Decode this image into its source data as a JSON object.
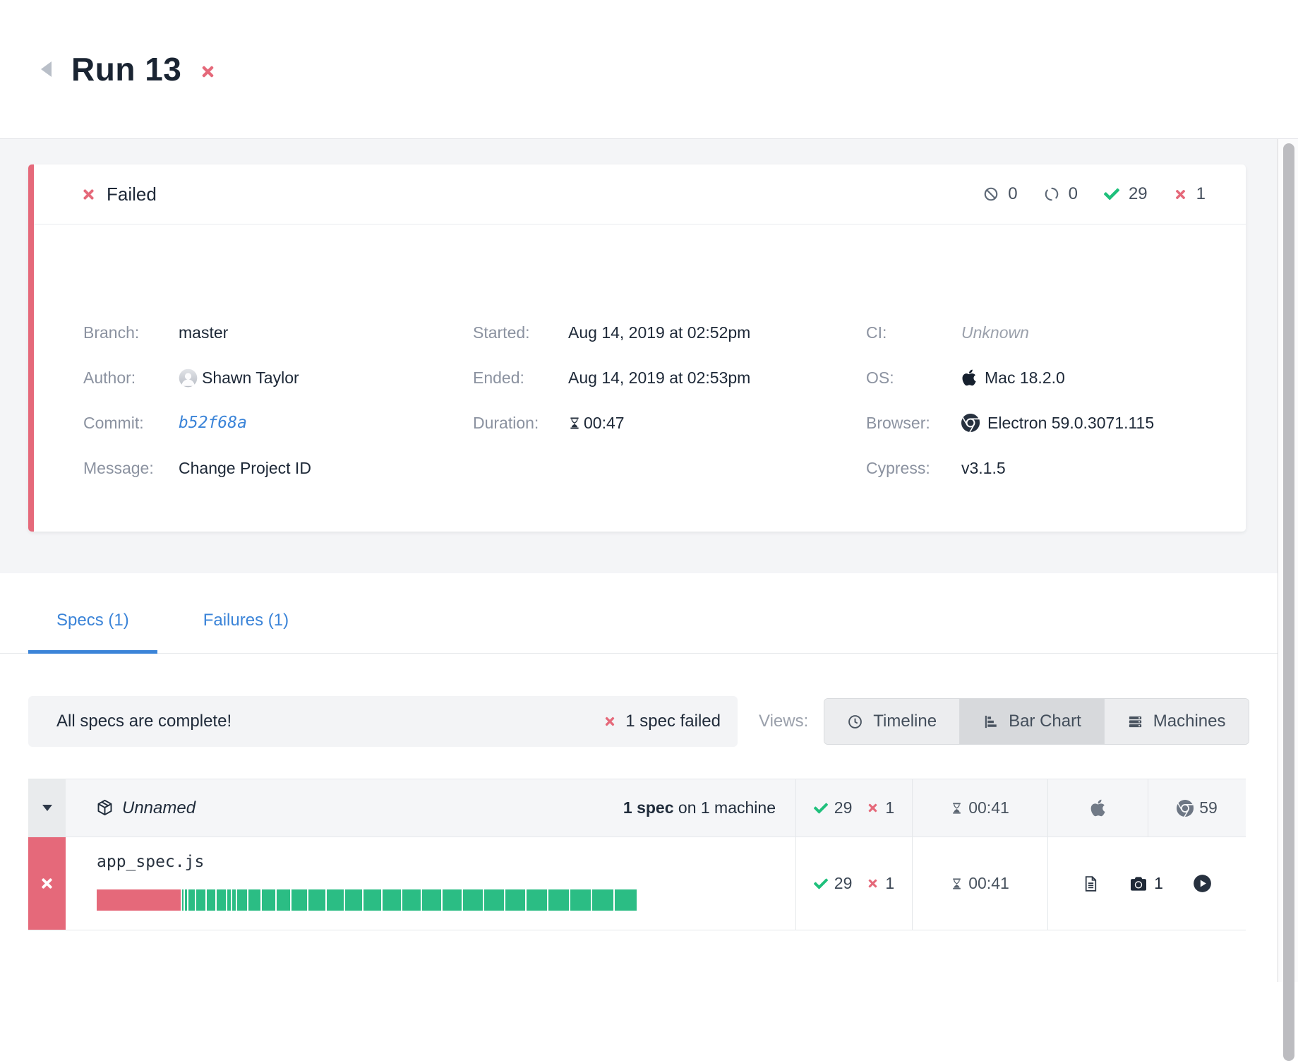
{
  "header": {
    "title": "Run 13"
  },
  "run_card": {
    "status_label": "Failed",
    "stats": [
      {
        "name": "skipped",
        "value": "0"
      },
      {
        "name": "pending",
        "value": "0"
      },
      {
        "name": "passed",
        "value": "29"
      },
      {
        "name": "failed",
        "value": "1"
      }
    ],
    "details": {
      "branch": {
        "label": "Branch:",
        "value": "master"
      },
      "author": {
        "label": "Author:",
        "value": "Shawn Taylor"
      },
      "commit": {
        "label": "Commit:",
        "value": "b52f68a"
      },
      "message": {
        "label": "Message:",
        "value": "Change Project ID"
      },
      "started": {
        "label": "Started:",
        "value": "Aug 14, 2019 at 02:52pm"
      },
      "ended": {
        "label": "Ended:",
        "value": "Aug 14, 2019 at 02:53pm"
      },
      "duration": {
        "label": "Duration:",
        "value": "00:47"
      },
      "ci": {
        "label": "CI:",
        "value": "Unknown"
      },
      "os": {
        "label": "OS:",
        "value": "Mac 18.2.0"
      },
      "browser": {
        "label": "Browser:",
        "value": "Electron 59.0.3071.115"
      },
      "cypress": {
        "label": "Cypress:",
        "value": "v3.1.5"
      }
    }
  },
  "tabs": [
    {
      "label": "Specs (1)",
      "active": true
    },
    {
      "label": "Failures (1)",
      "active": false
    }
  ],
  "status_bar": {
    "message": "All specs are complete!",
    "failed_text": "1 spec failed"
  },
  "views": {
    "label": "Views:",
    "timeline": "Timeline",
    "bar_chart": "Bar Chart",
    "machines": "Machines"
  },
  "spec_table": {
    "group": {
      "name": "Unnamed",
      "summary_bold": "1 spec",
      "summary_rest": " on 1 machine",
      "passed": "29",
      "failed": "1",
      "duration": "00:41",
      "browser_version": "59"
    },
    "spec": {
      "file": "app_spec.js",
      "passed": "29",
      "failed": "1",
      "duration": "00:41",
      "screenshot_count": "1"
    },
    "progress_bar": {
      "segments": [
        {
          "status": "failed",
          "weight": 108
        },
        {
          "status": "passed",
          "weight": 2
        },
        {
          "status": "passed",
          "weight": 2
        },
        {
          "status": "passed",
          "weight": 9
        },
        {
          "status": "passed",
          "weight": 11
        },
        {
          "status": "passed",
          "weight": 11
        },
        {
          "status": "passed",
          "weight": 12
        },
        {
          "status": "passed",
          "weight": 5
        },
        {
          "status": "passed",
          "weight": 4
        },
        {
          "status": "passed",
          "weight": 13
        },
        {
          "status": "passed",
          "weight": 15
        },
        {
          "status": "passed",
          "weight": 17
        },
        {
          "status": "passed",
          "weight": 18
        },
        {
          "status": "passed",
          "weight": 20
        },
        {
          "status": "passed",
          "weight": 21
        },
        {
          "status": "passed",
          "weight": 22
        },
        {
          "status": "passed",
          "weight": 22
        },
        {
          "status": "passed",
          "weight": 23
        },
        {
          "status": "passed",
          "weight": 23
        },
        {
          "status": "passed",
          "weight": 24
        },
        {
          "status": "passed",
          "weight": 24
        },
        {
          "status": "passed",
          "weight": 25
        },
        {
          "status": "passed",
          "weight": 25
        },
        {
          "status": "passed",
          "weight": 25
        },
        {
          "status": "passed",
          "weight": 26
        },
        {
          "status": "passed",
          "weight": 26
        },
        {
          "status": "passed",
          "weight": 26
        },
        {
          "status": "passed",
          "weight": 27
        },
        {
          "status": "passed",
          "weight": 27
        },
        {
          "status": "passed",
          "weight": 28
        }
      ]
    }
  },
  "colors": {
    "fail_red": "#e5697a",
    "pass_green": "#2bbd84",
    "link_blue": "#3b84d8",
    "dark_text": "#1d2837"
  }
}
